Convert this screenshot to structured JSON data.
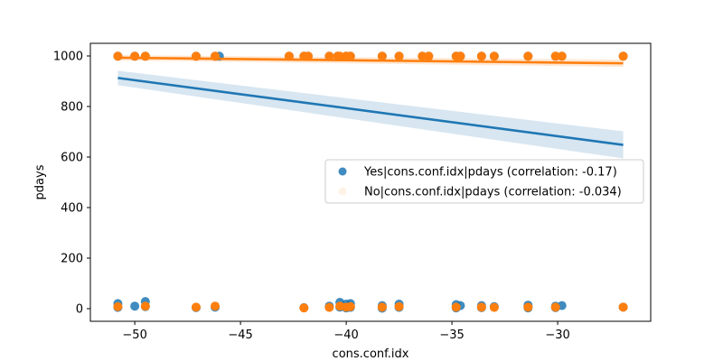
{
  "chart_data": {
    "type": "scatter",
    "xlabel": "cons.conf.idx",
    "ylabel": "pdays",
    "xlim": [
      -52.1,
      -25.6
    ],
    "ylim": [
      -50,
      1050
    ],
    "xticks": [
      -50,
      -45,
      -40,
      -35,
      -30
    ],
    "xtick_labels": [
      "−50",
      "−45",
      "−40",
      "−35",
      "−30"
    ],
    "yticks": [
      0,
      200,
      400,
      600,
      800,
      1000
    ],
    "ytick_labels": [
      "0",
      "200",
      "400",
      "600",
      "800",
      "1000"
    ],
    "grid": false,
    "legend_position": "center-right",
    "series": [
      {
        "name": "Yes|cons.conf.idx|pdays (correlation: -0.17)",
        "color": "#1f77b4",
        "marker_alpha": 0.85,
        "points": [
          [
            -50.8,
            999
          ],
          [
            -50.8,
            20
          ],
          [
            -50.8,
            5
          ],
          [
            -50.0,
            999
          ],
          [
            -50.0,
            10
          ],
          [
            -49.5,
            999
          ],
          [
            -49.5,
            28
          ],
          [
            -49.5,
            8
          ],
          [
            -47.1,
            999
          ],
          [
            -47.1,
            4
          ],
          [
            -46.2,
            999
          ],
          [
            -46.2,
            6
          ],
          [
            -46.0,
            999
          ],
          [
            -42.7,
            999
          ],
          [
            -42.0,
            999
          ],
          [
            -42.0,
            4
          ],
          [
            -41.8,
            999
          ],
          [
            -40.8,
            999
          ],
          [
            -40.8,
            10
          ],
          [
            -40.4,
            999
          ],
          [
            -40.3,
            25
          ],
          [
            -40.3,
            6
          ],
          [
            -40.0,
            999
          ],
          [
            -40.0,
            18
          ],
          [
            -40.0,
            3
          ],
          [
            -39.8,
            999
          ],
          [
            -39.8,
            20
          ],
          [
            -39.8,
            5
          ],
          [
            -38.3,
            999
          ],
          [
            -38.3,
            12
          ],
          [
            -38.3,
            2
          ],
          [
            -37.5,
            999
          ],
          [
            -37.5,
            18
          ],
          [
            -37.5,
            5
          ],
          [
            -36.4,
            999
          ],
          [
            -36.1,
            999
          ],
          [
            -34.8,
            999
          ],
          [
            -34.8,
            16
          ],
          [
            -34.8,
            3
          ],
          [
            -34.6,
            999
          ],
          [
            -34.6,
            12
          ],
          [
            -33.6,
            999
          ],
          [
            -33.6,
            12
          ],
          [
            -33.6,
            4
          ],
          [
            -33.0,
            999
          ],
          [
            -33.0,
            8
          ],
          [
            -31.4,
            999
          ],
          [
            -31.4,
            14
          ],
          [
            -31.4,
            7
          ],
          [
            -31.4,
            3
          ],
          [
            -30.1,
            999
          ],
          [
            -30.1,
            10
          ],
          [
            -30.1,
            4
          ],
          [
            -29.8,
            999
          ],
          [
            -29.8,
            12
          ],
          [
            -26.9,
            999
          ],
          [
            -26.9,
            6
          ]
        ],
        "regression": {
          "x": [
            -50.8,
            -26.9
          ],
          "y": [
            913,
            648
          ]
        }
      },
      {
        "name": "No|cons.conf.idx|pdays (correlation: -0.034)",
        "color": "#ff7f0e",
        "marker_alpha": 0.1,
        "points": [
          [
            -50.8,
            999
          ],
          [
            -50.8,
            8
          ],
          [
            -50.0,
            999
          ],
          [
            -49.5,
            999
          ],
          [
            -49.5,
            10
          ],
          [
            -47.1,
            999
          ],
          [
            -47.1,
            6
          ],
          [
            -46.2,
            999
          ],
          [
            -46.2,
            10
          ],
          [
            -42.7,
            999
          ],
          [
            -42.0,
            999
          ],
          [
            -42.0,
            3
          ],
          [
            -41.8,
            999
          ],
          [
            -40.8,
            999
          ],
          [
            -40.8,
            5
          ],
          [
            -40.4,
            999
          ],
          [
            -40.3,
            999
          ],
          [
            -40.3,
            10
          ],
          [
            -40.0,
            999
          ],
          [
            -40.0,
            6
          ],
          [
            -39.8,
            999
          ],
          [
            -39.8,
            8
          ],
          [
            -38.3,
            999
          ],
          [
            -38.3,
            6
          ],
          [
            -37.5,
            999
          ],
          [
            -37.5,
            8
          ],
          [
            -36.4,
            999
          ],
          [
            -36.1,
            999
          ],
          [
            -34.8,
            999
          ],
          [
            -34.8,
            6
          ],
          [
            -34.6,
            999
          ],
          [
            -33.6,
            999
          ],
          [
            -33.6,
            6
          ],
          [
            -33.0,
            999
          ],
          [
            -33.0,
            5
          ],
          [
            -31.4,
            999
          ],
          [
            -31.4,
            6
          ],
          [
            -30.1,
            999
          ],
          [
            -30.1,
            6
          ],
          [
            -29.8,
            999
          ],
          [
            -26.9,
            999
          ],
          [
            -26.9,
            6
          ]
        ],
        "regression": {
          "x": [
            -50.8,
            -26.9
          ],
          "y": [
            993,
            971
          ]
        }
      }
    ]
  }
}
